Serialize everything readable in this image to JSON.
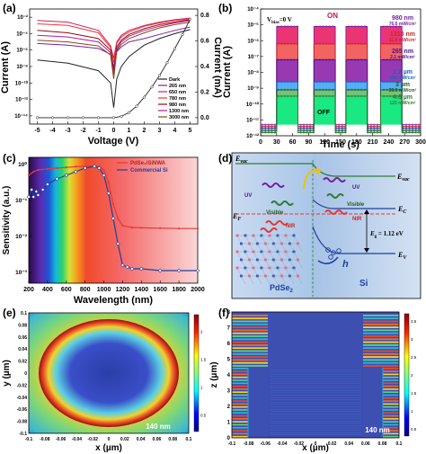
{
  "chart_data": [
    {
      "panel": "(a)",
      "type": "line",
      "xlabel": "Voltage (V)",
      "ylabel": "Current (A)",
      "ylabel_right": "Current (mA)",
      "xlim": [
        -5.5,
        5.5
      ],
      "x_ticks": [
        "-5",
        "-4",
        "-3",
        "-2",
        "-1",
        "0",
        "1",
        "2",
        "3",
        "4",
        "5"
      ],
      "y_ticks": [
        "10⁻¹⁴",
        "10⁻¹²",
        "10⁻¹⁰",
        "10⁻⁸",
        "10⁻⁶",
        "10⁻⁴",
        "10⁻²"
      ],
      "y2_ticks": [
        "0.0",
        "0.2",
        "0.4",
        "0.6",
        "0.8"
      ],
      "legend": [
        "Dark",
        "265 nm",
        "650 nm",
        "780 nm",
        "980 nm",
        "1300 nm",
        "3000 nm"
      ],
      "legend_colors": [
        "#222222",
        "#7a1fa2",
        "#d81b60",
        "#e53935",
        "#8e0b0b",
        "#b5179e",
        "#8b4513"
      ],
      "series": [
        {
          "name": "Dark",
          "x": [
            -5,
            -3,
            -1,
            -0.2,
            0,
            0.2,
            0.5,
            1,
            2,
            3,
            4,
            5
          ],
          "log10_y": [
            -7.2,
            -7.6,
            -8.5,
            -10,
            -13,
            -9.5,
            -8,
            -6.8,
            -5.4,
            -4.6,
            -4.0,
            -3.5
          ]
        },
        {
          "name": "265 nm",
          "x": [
            -5,
            -3,
            -1,
            -0.2,
            0,
            0.2,
            0.5,
            1,
            2,
            3,
            4,
            5
          ],
          "log10_y": [
            -5.2,
            -5.4,
            -5.8,
            -6.5,
            -8,
            -6.2,
            -5.6,
            -5,
            -4.6,
            -4.1,
            -3.6,
            -3.2
          ]
        },
        {
          "name": "650 nm",
          "x": [
            -5,
            -3,
            -1,
            -0.2,
            0,
            0.2,
            0.5,
            1,
            2,
            3,
            4,
            5
          ],
          "log10_y": [
            -2.4,
            -2.6,
            -3.6,
            -5.5,
            -7,
            -5,
            -4.2,
            -3.6,
            -3.0,
            -2.6,
            -2.3,
            -2.1
          ]
        },
        {
          "name": "780 nm",
          "x": [
            -5,
            -3,
            -1,
            -0.2,
            0,
            0.2,
            0.5,
            1,
            2,
            3,
            4,
            5
          ],
          "log10_y": [
            -2.8,
            -3.0,
            -3.9,
            -5.7,
            -7.5,
            -5.2,
            -4.4,
            -3.8,
            -3.1,
            -2.7,
            -2.4,
            -2.2
          ]
        },
        {
          "name": "980 nm",
          "x": [
            -5,
            -3,
            -1,
            -0.2,
            0,
            0.2,
            0.5,
            1,
            2,
            3,
            4,
            5
          ],
          "log10_y": [
            -3.6,
            -3.9,
            -4.6,
            -6.0,
            -8.5,
            -5.6,
            -4.8,
            -4.1,
            -3.4,
            -2.9,
            -2.6,
            -2.3
          ]
        },
        {
          "name": "1300 nm",
          "x": [
            -5,
            -3,
            -1,
            -0.2,
            0,
            0.2,
            0.5,
            1,
            2,
            3,
            4,
            5
          ],
          "log10_y": [
            -4.2,
            -4.4,
            -5.0,
            -6.3,
            -9,
            -5.9,
            -5.0,
            -4.3,
            -3.6,
            -3.1,
            -2.7,
            -2.4
          ]
        },
        {
          "name": "3000 nm",
          "x": [
            -5,
            -3,
            -1,
            -0.2,
            0,
            0.2,
            0.5,
            1,
            2,
            3,
            4,
            5
          ],
          "log10_y": [
            -4.8,
            -5.0,
            -5.5,
            -6.6,
            -9.5,
            -6.1,
            -5.3,
            -4.6,
            -3.9,
            -3.3,
            -2.9,
            -2.6
          ]
        },
        {
          "name": "linear",
          "x": [
            -5,
            -4,
            -3,
            -2,
            -1,
            0,
            0.5,
            1,
            1.5,
            2,
            2.5,
            3,
            3.5,
            4,
            4.5,
            5
          ],
          "y_mA": [
            0,
            0,
            0,
            0,
            0,
            0,
            0.01,
            0.04,
            0.09,
            0.16,
            0.24,
            0.33,
            0.43,
            0.54,
            0.65,
            0.77
          ]
        }
      ]
    },
    {
      "panel": "(b)",
      "type": "line",
      "xlabel": "Time (s)",
      "ylabel": "Current (A)",
      "annotation_bias": "V",
      "annotation_bias_sub": "bias",
      "annotation_bias_rest": "=0 V",
      "on_label": "ON",
      "off_label": "OFF",
      "xlim": [
        0,
        300
      ],
      "x_ticks": [
        "0",
        "30",
        "60",
        "90",
        "120",
        "150",
        "180",
        "210",
        "240",
        "270",
        "300"
      ],
      "y_ticks": [
        "10⁻¹²",
        "10⁻¹¹",
        "10⁻¹⁰",
        "10⁻⁹",
        "10⁻⁸",
        "10⁻⁷",
        "10⁻⁶",
        "10⁻⁵",
        "10⁻⁴"
      ],
      "on_intervals": [
        [
          30,
          70
        ],
        [
          100,
          140
        ],
        [
          160,
          200
        ],
        [
          225,
          265
        ]
      ],
      "series": [
        {
          "name": "980 nm",
          "sub": "76.6 mW/cm²",
          "on_log10": -5.1,
          "off_log10": -11.3,
          "color": "#7a1fa2",
          "color2": "#e91e63"
        },
        {
          "name": "1310 nm",
          "sub": "11.6 mW/cm²",
          "on_log10": -6.2,
          "off_log10": -11.4,
          "color": "#c62828",
          "color2": "#ef5350"
        },
        {
          "name": "265 nm",
          "sub": "2.1 mW/cm²",
          "on_log10": -7.2,
          "off_log10": -11.5,
          "color": "#4a148c",
          "color2": "#8e24aa"
        },
        {
          "name": "2.2 µm",
          "sub": "150 mW/cm²",
          "on_log10": -8.6,
          "off_log10": -11.6,
          "color": "#1565c0",
          "color2": "#42a5f5"
        },
        {
          "name": "3 µm",
          "sub": "35.9 mW/cm²",
          "on_log10": -9.1,
          "off_log10": -11.7,
          "color": "#1b5e20",
          "color2": "#66bb6a"
        },
        {
          "name": "4.6 µm",
          "sub": "125 mW/cm²",
          "on_log10": -9.5,
          "off_log10": -11.8,
          "color": "#2e7d32",
          "color2": "#00e676"
        }
      ]
    },
    {
      "panel": "(c)",
      "type": "line",
      "xlabel": "Wavelength (nm)",
      "ylabel": "Sensitivity (a.u.)",
      "xlim": [
        200,
        2000
      ],
      "x_ticks": [
        "200",
        "400",
        "600",
        "800",
        "1000",
        "1200",
        "1400",
        "1600",
        "1800",
        "2000"
      ],
      "y_ticks": [
        "10⁻³",
        "10⁻²",
        "10⁻¹",
        "10⁰"
      ],
      "series": [
        {
          "name": "PdSe₂/SiNWA",
          "color": "#e53935",
          "x": [
            200,
            250,
            300,
            400,
            500,
            600,
            700,
            800,
            900,
            950,
            1000,
            1050,
            1100,
            1150,
            1200,
            1300,
            1400,
            1600,
            1800,
            2000
          ],
          "log10_y": [
            -0.3,
            -0.2,
            -0.15,
            -0.12,
            -0.1,
            -0.08,
            -0.06,
            -0.05,
            -0.04,
            -0.05,
            -0.15,
            -0.5,
            -1.1,
            -1.5,
            -1.7,
            -1.75,
            -1.76,
            -1.77,
            -1.78,
            -1.78
          ]
        },
        {
          "name": "Commercial Si",
          "color": "#1f3f9e",
          "x": [
            200,
            230,
            250,
            280,
            300,
            350,
            400,
            500,
            600,
            700,
            800,
            900,
            950,
            1000,
            1050,
            1100,
            1150,
            1200,
            1250,
            1300,
            1400,
            1600,
            1800,
            2000
          ],
          "log10_y": [
            -0.9,
            -0.7,
            -0.9,
            -0.75,
            -0.85,
            -0.7,
            -0.55,
            -0.4,
            -0.3,
            -0.2,
            -0.1,
            -0.05,
            -0.1,
            -0.3,
            -0.8,
            -1.5,
            -2.2,
            -2.8,
            -2.85,
            -2.9,
            -2.9,
            -2.95,
            -2.95,
            -2.95
          ]
        }
      ]
    },
    {
      "panel": "(d)",
      "type": "diagram",
      "e_vac": "E",
      "e_vac_sub": "vac",
      "e_f": "E",
      "e_f_sub": "F",
      "e_c": "E",
      "e_c_sub": "C",
      "e_v": "E",
      "e_v_sub": "V",
      "gap": "E",
      "gap_sub": "g",
      "gap_val": " = 1.12 eV",
      "pdse2": "PdSe",
      "pdse2_sub": "2",
      "si": "Si",
      "h": "h",
      "uv_left": "UV",
      "visible_left": "Visible",
      "nir_left": "NIR",
      "uv_right": "UV",
      "visible_right": "Visible",
      "nir_right": "NIR"
    },
    {
      "panel": "(e)",
      "type": "heatmap",
      "xlabel": "x (µm)",
      "ylabel": "y (µm)",
      "x_ticks": [
        "-0.1",
        "-0.08",
        "-0.06",
        "-0.04",
        "-0.02",
        "0",
        "0.02",
        "0.04",
        "0.06",
        "0.08",
        "0.1"
      ],
      "y_ticks": [
        "-0.1",
        "-0.08",
        "-0.06",
        "-0.04",
        "-0.02",
        "0",
        "0.02",
        "0.04",
        "0.06",
        "0.08",
        "0.1"
      ],
      "colorbar_ticks": [
        "0.5",
        "1",
        "1.5",
        "2"
      ],
      "label": "140 nm"
    },
    {
      "panel": "(f)",
      "type": "heatmap",
      "xlabel": "x (µm)",
      "ylabel": "z (µm)",
      "x_ticks": [
        "-0.1",
        "-0.08",
        "-0.06",
        "-0.04",
        "-0.02",
        "0",
        "0.02",
        "0.04",
        "0.06",
        "0.08",
        "0.1"
      ],
      "y_ticks": [
        "0",
        "1",
        "2",
        "3",
        "4",
        "5",
        "6",
        "7",
        "8"
      ],
      "colorbar_ticks": [
        "0.5",
        "1",
        "1.5",
        "2",
        "2.5",
        "3",
        "3.5"
      ],
      "label": "140 nm"
    }
  ]
}
